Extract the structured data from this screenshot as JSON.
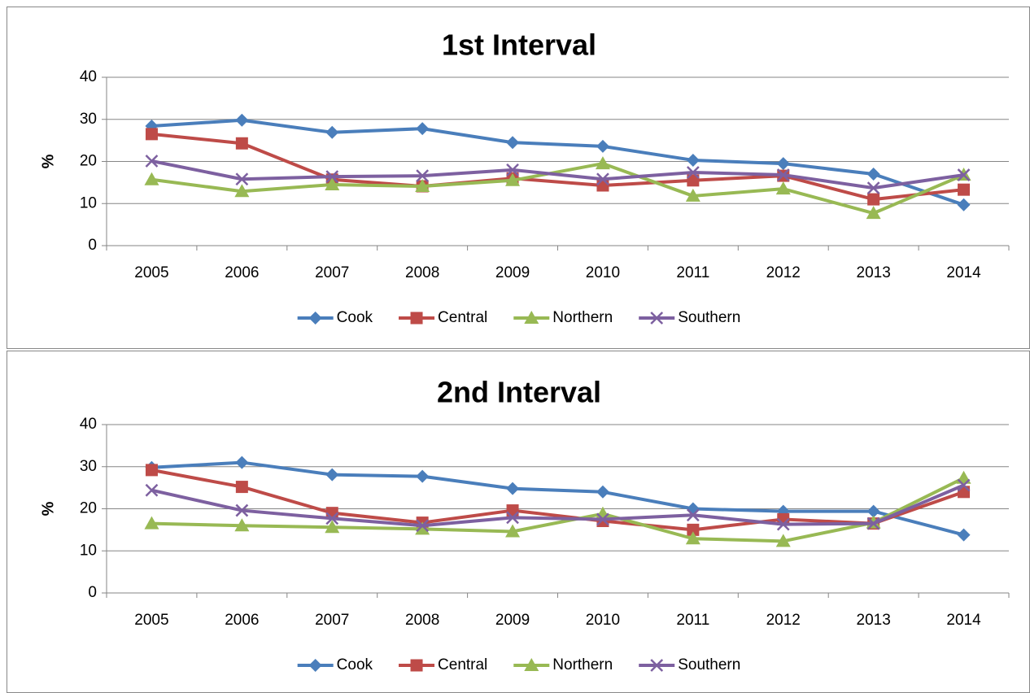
{
  "chart_data": [
    {
      "type": "line",
      "title": "1st Interval",
      "ylabel": "%",
      "categories": [
        "2005",
        "2006",
        "2007",
        "2008",
        "2009",
        "2010",
        "2011",
        "2012",
        "2013",
        "2014"
      ],
      "ylim": [
        0,
        40
      ],
      "yticks": [
        0,
        10,
        20,
        30,
        40
      ],
      "grid": true,
      "legend": "bottom",
      "series": [
        {
          "name": "Cook",
          "color": "#4a7ebb",
          "marker": "diamond",
          "values": [
            28.4,
            29.8,
            26.9,
            27.8,
            24.5,
            23.6,
            20.3,
            19.5,
            17,
            9.7
          ]
        },
        {
          "name": "Central",
          "color": "#be4b48",
          "marker": "square",
          "values": [
            26.5,
            24.3,
            15.7,
            14.1,
            16,
            14.3,
            15.5,
            16.6,
            11,
            13.3
          ]
        },
        {
          "name": "Northern",
          "color": "#98b954",
          "marker": "triangle",
          "values": [
            15.7,
            12.9,
            14.5,
            14.1,
            15.5,
            19.5,
            11.8,
            13.5,
            7.7,
            16.8
          ]
        },
        {
          "name": "Southern",
          "color": "#7d60a0",
          "marker": "x",
          "values": [
            20.1,
            15.8,
            16.4,
            16.6,
            18,
            15.8,
            17.4,
            16.8,
            13.7,
            16.8
          ]
        }
      ]
    },
    {
      "type": "line",
      "title": "2nd Interval",
      "ylabel": "%",
      "categories": [
        "2005",
        "2006",
        "2007",
        "2008",
        "2009",
        "2010",
        "2011",
        "2012",
        "2013",
        "2014"
      ],
      "ylim": [
        0,
        40
      ],
      "yticks": [
        0,
        10,
        20,
        30,
        40
      ],
      "grid": true,
      "legend": "bottom",
      "series": [
        {
          "name": "Cook",
          "color": "#4a7ebb",
          "marker": "diamond",
          "values": [
            29.8,
            31,
            28.1,
            27.7,
            24.8,
            24,
            20,
            19.4,
            19.4,
            13.8
          ]
        },
        {
          "name": "Central",
          "color": "#be4b48",
          "marker": "square",
          "values": [
            29.2,
            25.2,
            19,
            16.7,
            19.6,
            17.1,
            15,
            17.5,
            16.5,
            24
          ]
        },
        {
          "name": "Northern",
          "color": "#98b954",
          "marker": "triangle",
          "values": [
            16.5,
            16,
            15.6,
            15.2,
            14.6,
            18.8,
            12.9,
            12.3,
            16.7,
            27.3
          ]
        },
        {
          "name": "Southern",
          "color": "#7d60a0",
          "marker": "x",
          "values": [
            24.4,
            19.6,
            17.7,
            16,
            17.9,
            17.5,
            18.5,
            16.3,
            16.5,
            25.6
          ]
        }
      ]
    }
  ]
}
